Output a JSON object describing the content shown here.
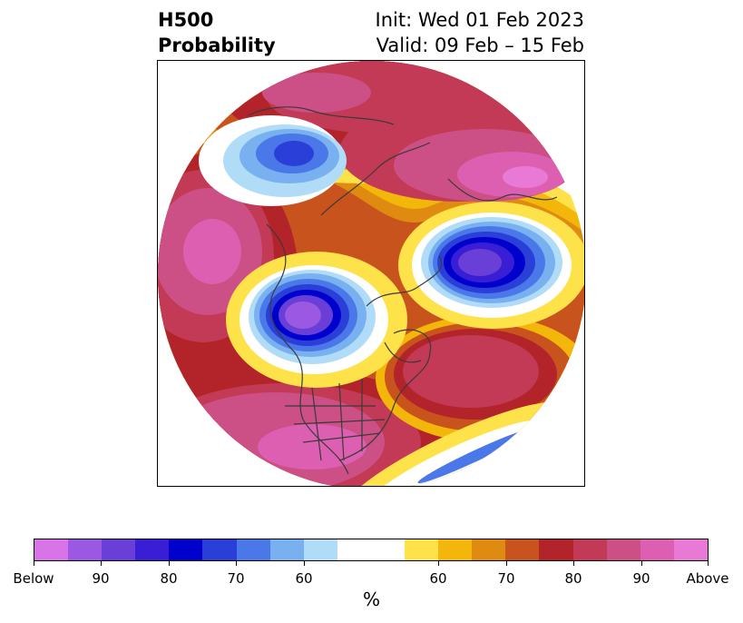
{
  "header": {
    "title_line1": "H500",
    "title_line2": "Probability",
    "init_text": "Init: Wed 01 Feb 2023",
    "valid_text": "Valid: 09 Feb – 15 Feb"
  },
  "colorbar": {
    "unit_label": "%",
    "tick_labels": [
      "Below",
      "90",
      "80",
      "70",
      "60",
      "60",
      "70",
      "80",
      "90",
      "Above"
    ],
    "below_colors": [
      "#d874e8",
      "#9b59e3",
      "#6a3fd8",
      "#3a1ed6",
      "#0000cc",
      "#2a3ed8",
      "#4a78e8",
      "#78b0f0",
      "#b0dcf8"
    ],
    "neutral_color": "#ffffff",
    "above_colors": [
      "#fde24a",
      "#f3b60a",
      "#df8a10",
      "#c8531c",
      "#b2232a",
      "#c23a55",
      "#cc4f86",
      "#dc5fb1",
      "#e87ad6"
    ]
  },
  "map": {
    "projection": "north polar stereographic",
    "field": "500 hPa height anomaly probability"
  }
}
